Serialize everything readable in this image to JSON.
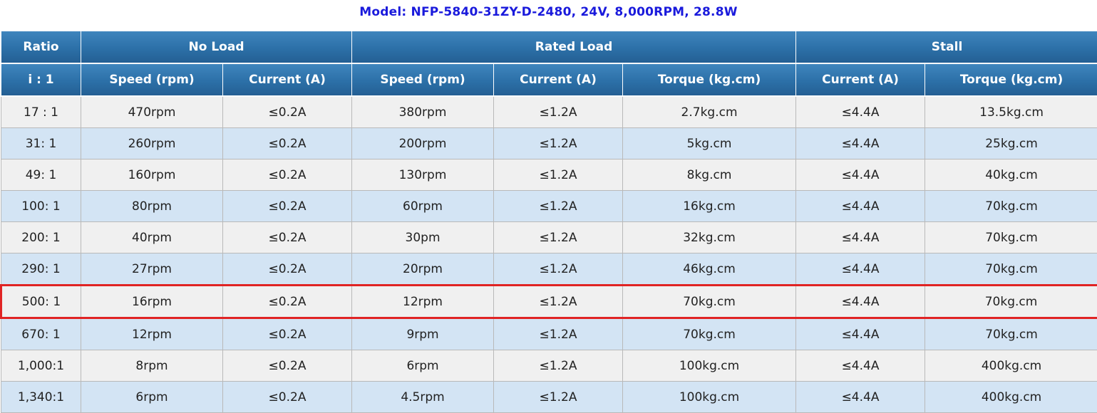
{
  "title": "Model: NFP-5840-31ZY-D-2480, 24V, 8,000RPM, 28.8W",
  "header": {
    "ratio": "Ratio",
    "no_load": "No Load",
    "rated_load": "Rated Load",
    "stall": "Stall",
    "ratio_sub": "i : 1",
    "speed": "Speed (rpm)",
    "current": "Current (A)",
    "torque": "Torque (kg.cm)"
  },
  "highlight_row": 6,
  "colors": {
    "header_blue": "#2c70a8",
    "title_blue": "#1a1adc",
    "row_gray": "#f0f0f0",
    "row_blue": "#d3e4f4",
    "highlight_red": "#e02424"
  },
  "rows": [
    [
      "17 : 1",
      "470rpm",
      "≤0.2A",
      "380rpm",
      "≤1.2A",
      "2.7kg.cm",
      "≤4.4A",
      "13.5kg.cm"
    ],
    [
      "31: 1",
      "260rpm",
      "≤0.2A",
      "200rpm",
      "≤1.2A",
      "5kg.cm",
      "≤4.4A",
      "25kg.cm"
    ],
    [
      "49: 1",
      "160rpm",
      "≤0.2A",
      "130rpm",
      "≤1.2A",
      "8kg.cm",
      "≤4.4A",
      "40kg.cm"
    ],
    [
      "100: 1",
      "80rpm",
      "≤0.2A",
      "60rpm",
      "≤1.2A",
      "16kg.cm",
      "≤4.4A",
      "70kg.cm"
    ],
    [
      "200: 1",
      "40rpm",
      "≤0.2A",
      "30pm",
      "≤1.2A",
      "32kg.cm",
      "≤4.4A",
      "70kg.cm"
    ],
    [
      "290: 1",
      "27rpm",
      "≤0.2A",
      "20rpm",
      "≤1.2A",
      "46kg.cm",
      "≤4.4A",
      "70kg.cm"
    ],
    [
      "500: 1",
      "16rpm",
      "≤0.2A",
      "12rpm",
      "≤1.2A",
      "70kg.cm",
      "≤4.4A",
      "70kg.cm"
    ],
    [
      "670: 1",
      "12rpm",
      "≤0.2A",
      "9rpm",
      "≤1.2A",
      "70kg.cm",
      "≤4.4A",
      "70kg.cm"
    ],
    [
      "1,000:1",
      "8rpm",
      "≤0.2A",
      "6rpm",
      "≤1.2A",
      "100kg.cm",
      "≤4.4A",
      "400kg.cm"
    ],
    [
      "1,340:1",
      "6rpm",
      "≤0.2A",
      "4.5rpm",
      "≤1.2A",
      "100kg.cm",
      "≤4.4A",
      "400kg.cm"
    ]
  ]
}
